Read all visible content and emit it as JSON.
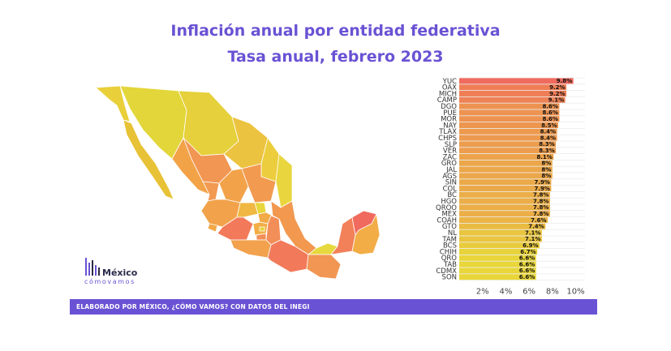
{
  "title": "Inflación anual por entidad federativa",
  "subtitle": "Tasa anual, febrero 2023",
  "footer": "ELABORADO POR MÉXICO, ¿CÓMO VAMOS? CON DATOS DEL INEGI",
  "logo": {
    "main": "México",
    "sub": "cómovamos"
  },
  "colors": {
    "accent": "#6a52d4",
    "low": "#e8d633",
    "high": "#f07060"
  },
  "chart_data": {
    "type": "bar",
    "orientation": "horizontal",
    "categories": [
      "YUC",
      "OAX",
      "MICH",
      "CAMP",
      "DGO",
      "PUE",
      "MOR",
      "NAY",
      "TLAX",
      "CHPS",
      "SLP",
      "VER",
      "ZAC",
      "GRO",
      "JAL",
      "AGS",
      "SIN",
      "COL",
      "BC",
      "HGO",
      "QROO",
      "MEX",
      "COAH",
      "GTO",
      "NL",
      "TAM",
      "BCS",
      "CHIH",
      "QRO",
      "TAB",
      "CDMX",
      "SON"
    ],
    "values": [
      9.8,
      9.2,
      9.2,
      9.1,
      8.6,
      8.6,
      8.6,
      8.5,
      8.4,
      8.4,
      8.3,
      8.3,
      8.1,
      8,
      8,
      8,
      7.9,
      7.9,
      7.8,
      7.8,
      7.8,
      7.8,
      7.6,
      7.4,
      7.1,
      7.1,
      6.9,
      6.7,
      6.6,
      6.6,
      6.6,
      6.6
    ],
    "labels": [
      "9.8%",
      "9.2%",
      "9.2%",
      "9.1%",
      "8.6%",
      "8.6%",
      "8.6%",
      "8.5%",
      "8.4%",
      "8.4%",
      "8.3%",
      "8.3%",
      "8.1%",
      "8%",
      "8%",
      "8%",
      "7.9%",
      "7.9%",
      "7.8%",
      "7.8%",
      "7.8%",
      "7.8%",
      "7.6%",
      "7.4%",
      "7.1%",
      "7.1%",
      "6.9%",
      "6.7%",
      "6.6%",
      "6.6%",
      "6.6%",
      "6.6%"
    ],
    "xticks": [
      "2%",
      "4%",
      "6%",
      "8%",
      "10%"
    ],
    "xtick_values": [
      2,
      4,
      6,
      8,
      10
    ],
    "xlim": [
      0,
      10.8
    ],
    "grid": true,
    "color_scale": "yellow-to-red"
  }
}
